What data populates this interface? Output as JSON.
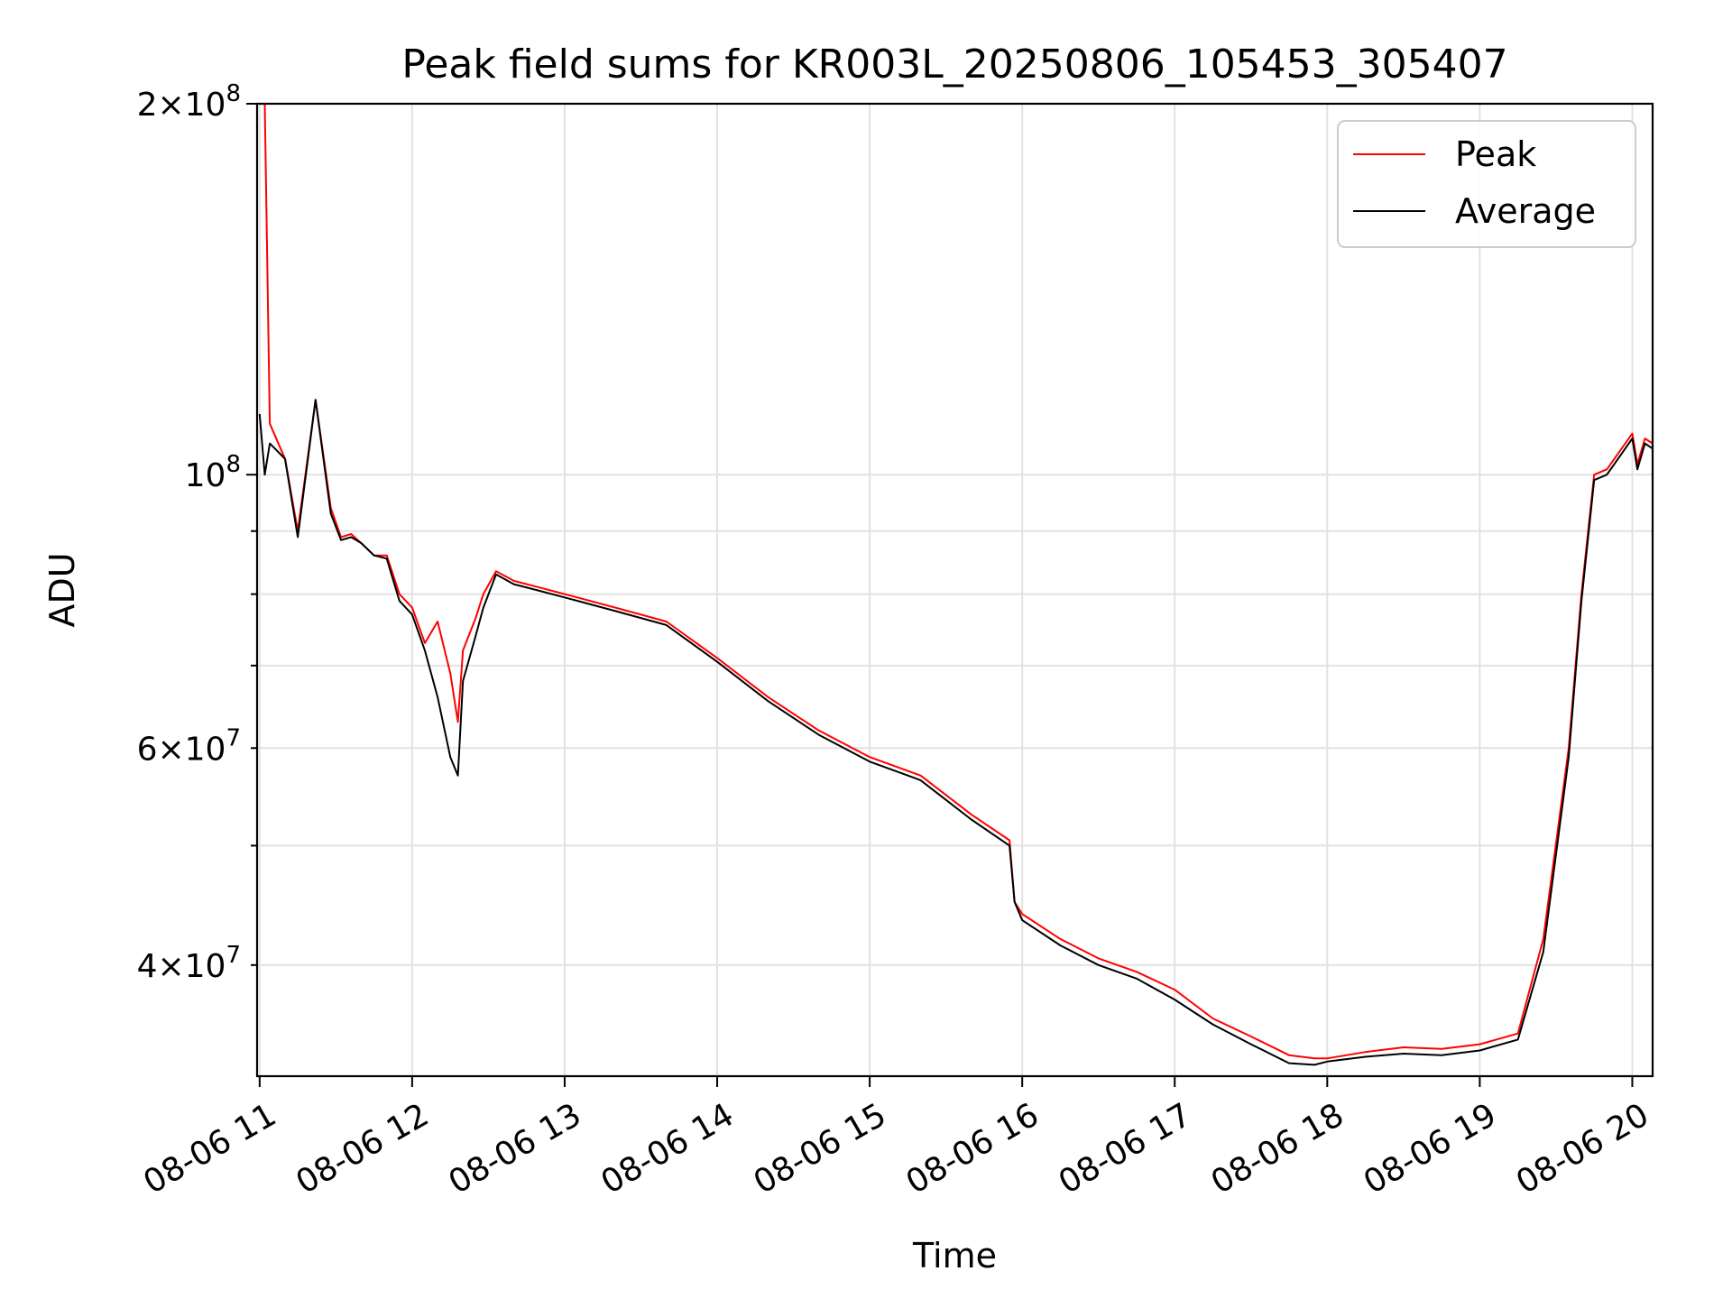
{
  "chart_data": {
    "type": "line",
    "title": "Peak field sums for KR003L_20250806_105453_305407",
    "xlabel": "Time",
    "ylabel": "ADU",
    "yscale": "log",
    "ylim": [
      32500000,
      200000000
    ],
    "xlim": [
      "08-06 10:59",
      "08-06 20:08"
    ],
    "grid": true,
    "legend_position": "top-right",
    "x_ticks": [
      "08-06 11",
      "08-06 12",
      "08-06 13",
      "08-06 14",
      "08-06 15",
      "08-06 16",
      "08-06 17",
      "08-06 18",
      "08-06 19",
      "08-06 20"
    ],
    "y_major_ticks": [
      {
        "value": 100000000,
        "mant": "",
        "exp": "8"
      },
      {
        "value": 200000000,
        "mant": "2",
        "exp": "8"
      }
    ],
    "y_minor_ticks": [
      {
        "value": 40000000,
        "mant": "4",
        "exp": "7"
      },
      {
        "value": 60000000,
        "mant": "6",
        "exp": "7"
      }
    ],
    "y_unlabeled_minor_ticks": [
      30000000,
      50000000,
      70000000,
      80000000,
      90000000
    ],
    "x_times": [
      "08-06 11:00",
      "08-06 11:02",
      "08-06 11:04",
      "08-06 11:10",
      "08-06 11:15",
      "08-06 11:22",
      "08-06 11:28",
      "08-06 11:32",
      "08-06 11:36",
      "08-06 11:40",
      "08-06 11:45",
      "08-06 11:50",
      "08-06 11:55",
      "08-06 12:00",
      "08-06 12:05",
      "08-06 12:10",
      "08-06 12:15",
      "08-06 12:18",
      "08-06 12:20",
      "08-06 12:25",
      "08-06 12:28",
      "08-06 12:33",
      "08-06 12:40",
      "08-06 12:50",
      "08-06 13:00",
      "08-06 13:20",
      "08-06 13:40",
      "08-06 14:00",
      "08-06 14:20",
      "08-06 14:40",
      "08-06 15:00",
      "08-06 15:20",
      "08-06 15:40",
      "08-06 15:55",
      "08-06 15:57",
      "08-06 16:00",
      "08-06 16:15",
      "08-06 16:30",
      "08-06 16:45",
      "08-06 17:00",
      "08-06 17:15",
      "08-06 17:30",
      "08-06 17:45",
      "08-06 17:55",
      "08-06 18:00",
      "08-06 18:15",
      "08-06 18:30",
      "08-06 18:45",
      "08-06 19:00",
      "08-06 19:15",
      "08-06 19:25",
      "08-06 19:35",
      "08-06 19:40",
      "08-06 19:45",
      "08-06 19:50",
      "08-06 20:00",
      "08-06 20:02",
      "08-06 20:05",
      "08-06 20:08"
    ],
    "series": [
      {
        "name": "Peak",
        "color": "#ff0000",
        "values": [
          200000000,
          200000000,
          110000000,
          103000000,
          90000000,
          115000000,
          94000000,
          89000000,
          89500000,
          88000000,
          86000000,
          86000000,
          80000000,
          78000000,
          73000000,
          76000000,
          69000000,
          63000000,
          72000000,
          76500000,
          80000000,
          83500000,
          82000000,
          81000000,
          80000000,
          78000000,
          76000000,
          71000000,
          66000000,
          62000000,
          59000000,
          57000000,
          53000000,
          50500000,
          45000000,
          44000000,
          42000000,
          40500000,
          39500000,
          38200000,
          36200000,
          35000000,
          33800000,
          33600000,
          33600000,
          34000000,
          34300000,
          34200000,
          34500000,
          35200000,
          42000000,
          60000000,
          80000000,
          100000000,
          101000000,
          108000000,
          102000000,
          107000000,
          106000000
        ]
      },
      {
        "name": "Average",
        "color": "#000000",
        "values": [
          112000000,
          100000000,
          106000000,
          103000000,
          89000000,
          115000000,
          93000000,
          88500000,
          89000000,
          88000000,
          86000000,
          85500000,
          79000000,
          77000000,
          72000000,
          66000000,
          59000000,
          57000000,
          68000000,
          74000000,
          78000000,
          83000000,
          81500000,
          80500000,
          79500000,
          77500000,
          75500000,
          70500000,
          65500000,
          61500000,
          58500000,
          56500000,
          52500000,
          50000000,
          45000000,
          43500000,
          41500000,
          40000000,
          39000000,
          37500000,
          35800000,
          34500000,
          33300000,
          33200000,
          33400000,
          33700000,
          33900000,
          33800000,
          34100000,
          34800000,
          41000000,
          59000000,
          79000000,
          99000000,
          100000000,
          107000000,
          101000000,
          106000000,
          105000000
        ]
      }
    ]
  }
}
